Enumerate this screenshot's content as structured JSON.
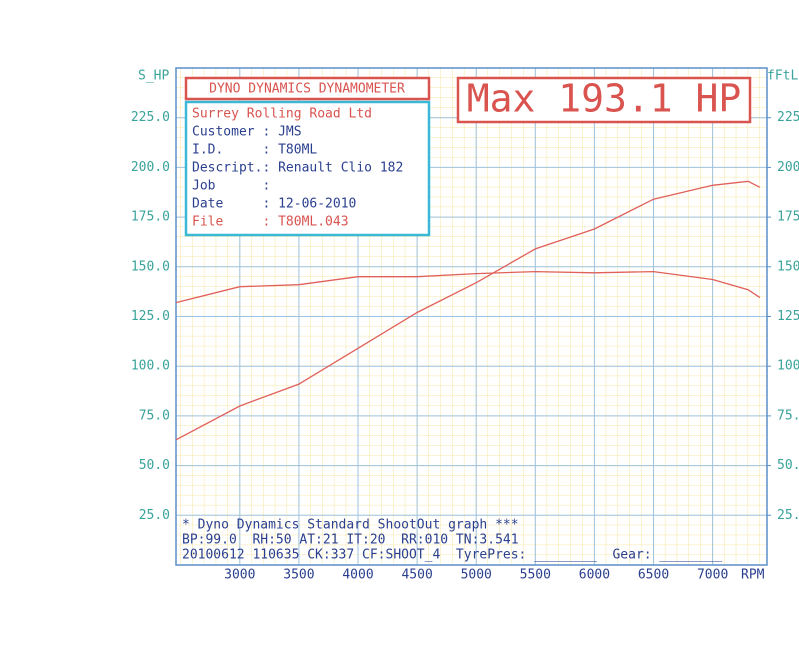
{
  "chart_data": {
    "type": "line",
    "ylabel": "S_HP",
    "y2label": "fFtL",
    "xlabel": "RPM",
    "header_box": "DYNO DYNAMICS DYNAMOMETER",
    "max_label": "Max 193.1 HP",
    "info_title": "Surrey Rolling Road Ltd",
    "info_lines": [
      "Customer : JMS",
      "I.D.     : T80ML",
      "Descript.: Renault Clio 182",
      "Job      :",
      "Date     : 12-06-2010"
    ],
    "info_file": "File     : T80ML.043",
    "footer_lines": [
      "* Dyno Dynamics Standard ShootOut graph ***",
      "BP:99.0  RH:50 AT:21 IT:20  RR:010 TN:3.541",
      "20100612 110635 CK:337 CF:SHOOT_4  TyrePres: ________  Gear: ________"
    ],
    "x": [
      2460,
      3000,
      3500,
      4000,
      4500,
      5000,
      5500,
      6000,
      6500,
      7000,
      7300,
      7400
    ],
    "series": [
      {
        "color": "#e0605a",
        "values": [
          63,
          80,
          91,
          109,
          127,
          142,
          159,
          169,
          184,
          191,
          193,
          190
        ]
      },
      {
        "color": "#e0605a",
        "axis": "y2",
        "values": [
          132,
          140,
          141,
          145,
          145,
          146.6,
          147.6,
          147,
          147.6,
          143.6,
          138.5,
          134.5
        ]
      }
    ],
    "xlim": [
      2460,
      7460
    ],
    "ylim": [
      0,
      250
    ],
    "y2lim": [
      0,
      250
    ],
    "xticks": [
      3000,
      3500,
      4000,
      4500,
      5000,
      5500,
      6000,
      6500,
      7000
    ],
    "yticks": [
      {
        "value": 25,
        "label": "25.0"
      },
      {
        "value": 50,
        "label": "50.0"
      },
      {
        "value": 75,
        "label": "75.0"
      },
      {
        "value": 100,
        "label": "100.0"
      },
      {
        "value": 125,
        "label": "125.0"
      },
      {
        "value": 150,
        "label": "150.0"
      },
      {
        "value": 175,
        "label": "175.0"
      },
      {
        "value": 200,
        "label": "200.0"
      },
      {
        "value": 225,
        "label": "225.0"
      }
    ],
    "y2ticks": [
      {
        "value": 25,
        "label": "25."
      },
      {
        "value": 50,
        "label": "50."
      },
      {
        "value": 75,
        "label": "75."
      },
      {
        "value": 100,
        "label": "100."
      },
      {
        "value": 125,
        "label": "125."
      },
      {
        "value": 150,
        "label": "150."
      },
      {
        "value": 175,
        "label": "175."
      },
      {
        "value": 200,
        "label": "200."
      },
      {
        "value": 225,
        "label": "225."
      }
    ],
    "grid": true
  }
}
